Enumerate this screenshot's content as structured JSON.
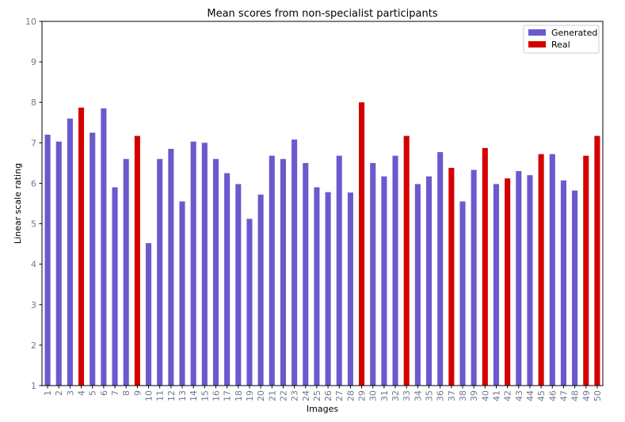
{
  "chart_data": {
    "type": "bar",
    "title": "Mean scores from non-specialist participants",
    "xlabel": "Images",
    "ylabel": "Linear scale rating",
    "ylim": [
      1,
      10
    ],
    "yticks": [
      1,
      2,
      3,
      4,
      5,
      6,
      7,
      8,
      9,
      10
    ],
    "grid": false,
    "legend_position": "top-right",
    "colors": {
      "Generated": "#6a5acd",
      "Real": "#d40000"
    },
    "series": [
      {
        "name": "Generated"
      },
      {
        "name": "Real"
      }
    ],
    "categories": [
      "1",
      "2",
      "3",
      "4",
      "5",
      "6",
      "7",
      "8",
      "9",
      "10",
      "11",
      "12",
      "13",
      "14",
      "15",
      "16",
      "17",
      "18",
      "19",
      "20",
      "21",
      "22",
      "23",
      "24",
      "25",
      "26",
      "27",
      "28",
      "29",
      "30",
      "31",
      "32",
      "33",
      "34",
      "35",
      "36",
      "37",
      "38",
      "39",
      "40",
      "41",
      "42",
      "43",
      "44",
      "45",
      "46",
      "47",
      "48",
      "49",
      "50"
    ],
    "values": [
      7.2,
      7.03,
      7.6,
      7.87,
      7.25,
      7.85,
      5.9,
      6.6,
      7.17,
      4.52,
      6.6,
      6.85,
      5.55,
      7.03,
      7.0,
      6.6,
      6.25,
      5.98,
      5.12,
      5.72,
      6.68,
      6.6,
      7.08,
      6.5,
      5.9,
      5.78,
      6.68,
      5.77,
      8.0,
      6.5,
      6.17,
      6.68,
      7.17,
      5.98,
      6.17,
      6.77,
      6.38,
      5.55,
      6.33,
      6.87,
      5.98,
      6.12,
      6.3,
      6.2,
      6.72,
      6.72,
      6.07,
      5.82,
      6.68,
      7.17
    ],
    "kind": [
      "Generated",
      "Generated",
      "Generated",
      "Real",
      "Generated",
      "Generated",
      "Generated",
      "Generated",
      "Real",
      "Generated",
      "Generated",
      "Generated",
      "Generated",
      "Generated",
      "Generated",
      "Generated",
      "Generated",
      "Generated",
      "Generated",
      "Generated",
      "Generated",
      "Generated",
      "Generated",
      "Generated",
      "Generated",
      "Generated",
      "Generated",
      "Generated",
      "Real",
      "Generated",
      "Generated",
      "Generated",
      "Real",
      "Generated",
      "Generated",
      "Generated",
      "Real",
      "Generated",
      "Generated",
      "Real",
      "Generated",
      "Real",
      "Generated",
      "Generated",
      "Real",
      "Generated",
      "Generated",
      "Generated",
      "Real",
      "Real"
    ]
  }
}
